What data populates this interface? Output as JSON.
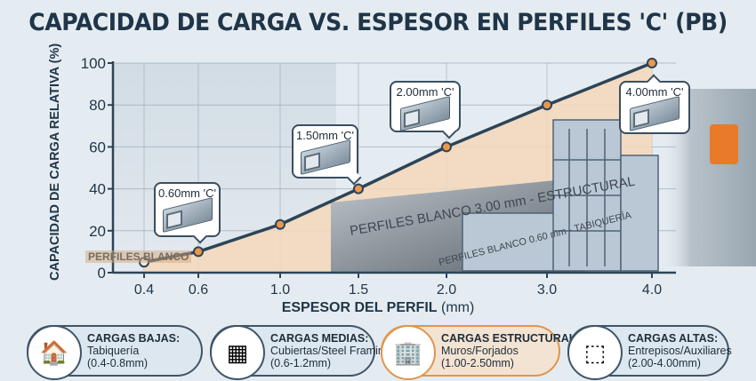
{
  "title": "CAPACIDAD DE CARGA VS. ESPESOR EN PERFILES 'C' (PB)",
  "chart_data": {
    "type": "area",
    "title": "CAPACIDAD DE CARGA VS. ESPESOR EN PERFILES 'C' (PB)",
    "xlabel_bold": "ESPESOR DEL PERFIL",
    "xlabel_unit": "(mm)",
    "ylabel": "CAPACIDAD DE CARGA RELATIVA (%)",
    "categories": [
      "0.4",
      "0.6",
      "1.0",
      "1.5",
      "2.0",
      "3.0",
      "4.0"
    ],
    "values": [
      5,
      10,
      23,
      40,
      60,
      80,
      100
    ],
    "ylim": [
      0,
      100
    ],
    "yticks": [
      "0",
      "20",
      "40",
      "60",
      "80",
      "100"
    ],
    "grid": true,
    "colors": {
      "line": "#2c4458",
      "marker": "#e8984c",
      "fill": "#f4d8ba"
    },
    "annotations": [
      {
        "x": "0.6",
        "label": "0.60mm 'C'"
      },
      {
        "x": "1.5",
        "label": "1.50mm 'C'"
      },
      {
        "x": "2.0",
        "label": "2.00mm 'C'"
      },
      {
        "x": "4.0",
        "label": "4.00mm 'C'"
      }
    ]
  },
  "photo_lettering": {
    "stamp_structural": "PERFILES BLANCO 3.00 mm - ESTRUCTURAL",
    "stamp_partition": "PERFILES BLANCO 0.60 mm - TABIQUERÍA",
    "logo": "PERFILES BLANCO"
  },
  "legend_cards": [
    {
      "icon": "house-icon",
      "title": "CARGAS BAJAS:",
      "line1": "Tabiquería",
      "line2": "(0.4-0.8mm)",
      "highlight": false
    },
    {
      "icon": "roof-solar-icon",
      "title": "CARGAS MEDIAS:",
      "line1": "Cubiertas/Steel Framing",
      "line2": "(0.6-1.2mm)",
      "highlight": false
    },
    {
      "icon": "building-frame-icon",
      "title": "CARGAS ESTRUCTURALES:",
      "line1": "Muros/Forjados",
      "line2": "(1.00-2.50mm)",
      "highlight": true
    },
    {
      "icon": "mezzanine-icon",
      "title": "CARGAS ALTAS:",
      "line1": "Entrepisos/Auxiliares",
      "line2": "(2.00-4.00mm)",
      "highlight": false
    }
  ]
}
